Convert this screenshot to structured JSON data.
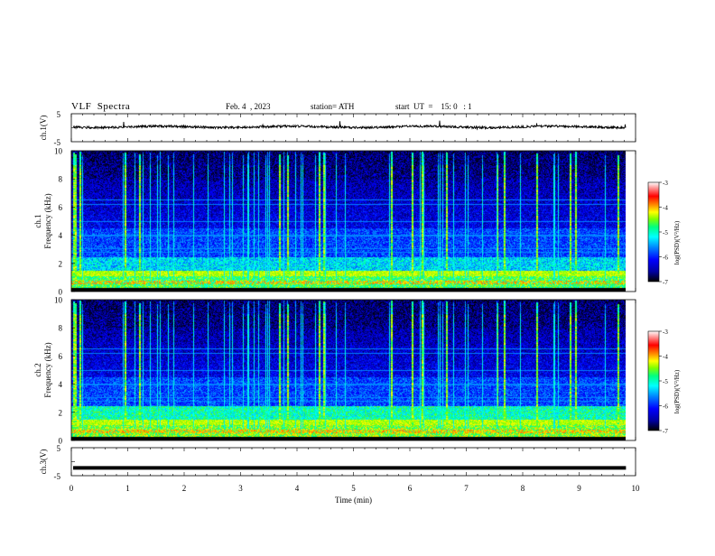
{
  "header": {
    "title": "VLF  Spectra",
    "date": "Feb. 4  , 2023",
    "station": "station= ATH",
    "start_ut": "start  UT  =    15: 0   : 1"
  },
  "chart_data": [
    {
      "type": "line",
      "panel": "ch1-waveform",
      "ylabel": "ch.1(V)",
      "yticks": [
        "5",
        "-5"
      ],
      "ylim": [
        -5,
        5
      ],
      "xlim": [
        0,
        10
      ],
      "data_extent_min": 9.83,
      "description_values": {
        "baseline_v": 0.3,
        "noise_amplitude_v": 0.4
      }
    },
    {
      "type": "heatmap",
      "panel": "ch1-spectrogram",
      "ylabel": "ch.1\nFrequency  (kHz)",
      "ylabel_line1": "ch.1",
      "ylabel_line2": "Frequency  (kHz)",
      "yticks": [
        "0",
        "2",
        "4",
        "6",
        "8",
        "10"
      ],
      "ylim": [
        0,
        10
      ],
      "xlim": [
        0,
        10
      ],
      "data_extent_min": 9.83,
      "colorbar": {
        "label": "log(PSD)(V²/Hz)",
        "ticks": [
          "-3",
          "-4",
          "-5",
          "-6",
          "-7"
        ],
        "range": [
          -7,
          -3
        ]
      }
    },
    {
      "type": "heatmap",
      "panel": "ch2-spectrogram",
      "ylabel_line1": "ch.2",
      "ylabel_line2": "Frequency  (kHz)",
      "yticks": [
        "0",
        "2",
        "4",
        "6",
        "8",
        "10"
      ],
      "ylim": [
        0,
        10
      ],
      "xlim": [
        0,
        10
      ],
      "data_extent_min": 9.83,
      "colorbar": {
        "label": "log(PSD)(V²/Hz)",
        "ticks": [
          "-3",
          "-4",
          "-5",
          "-6",
          "-7"
        ],
        "range": [
          -7,
          -3
        ]
      }
    },
    {
      "type": "line",
      "panel": "ch3-waveform",
      "ylabel": "ch.3(V)",
      "yticks": [
        "5",
        "-5"
      ],
      "ylim": [
        -5,
        5
      ],
      "xlim": [
        0,
        10
      ],
      "data_extent_min": 9.83,
      "description_values": {
        "baseline_v": -2.2
      }
    }
  ],
  "xaxis": {
    "label": "Time  (min)",
    "ticks": [
      "0",
      "1",
      "2",
      "3",
      "4",
      "5",
      "6",
      "7",
      "8",
      "9",
      "10"
    ]
  },
  "colors": {
    "cmap": [
      "#000000",
      "#0000a0",
      "#0000ff",
      "#0080ff",
      "#00ffff",
      "#00ff80",
      "#80ff00",
      "#ffff00",
      "#ff8000",
      "#ff0000",
      "#ffffff"
    ]
  }
}
